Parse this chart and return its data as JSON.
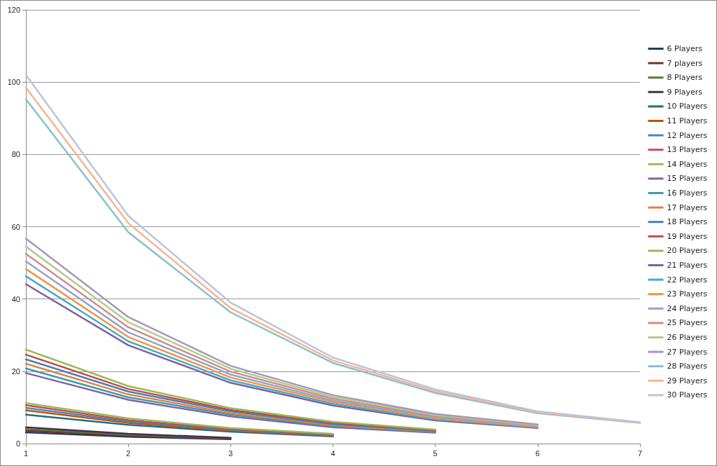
{
  "chart_data": {
    "type": "line",
    "categories": [
      "1",
      "2",
      "3",
      "4",
      "5",
      "6",
      "7"
    ],
    "ylim": [
      0,
      120
    ],
    "yticks": [
      0,
      20,
      40,
      60,
      80,
      100,
      120
    ],
    "grid": "y",
    "legend": "right",
    "marker": "none",
    "line_style": "solid",
    "series": [
      {
        "name": "6 Players",
        "color": "#1f3b64",
        "values": [
          3.1,
          1.9,
          1.2,
          null,
          null,
          null,
          null
        ]
      },
      {
        "name": "7 players",
        "color": "#772c2a",
        "values": [
          3.6,
          2.2,
          1.4,
          null,
          null,
          null,
          null
        ]
      },
      {
        "name": "8 Players",
        "color": "#5f7530",
        "values": [
          4.0,
          2.4,
          1.5,
          null,
          null,
          null,
          null
        ]
      },
      {
        "name": "9 Players",
        "color": "#3f3151",
        "values": [
          4.5,
          2.7,
          1.6,
          null,
          null,
          null,
          null
        ]
      },
      {
        "name": "10 Players",
        "color": "#276a7c",
        "values": [
          8.0,
          5.2,
          3.3,
          2.0,
          null,
          null,
          null
        ]
      },
      {
        "name": "11 Players",
        "color": "#b65708",
        "values": [
          9.2,
          5.7,
          3.6,
          2.2,
          null,
          null,
          null
        ]
      },
      {
        "name": "12 Players",
        "color": "#4f81bd",
        "values": [
          9.9,
          6.1,
          3.8,
          2.3,
          null,
          null,
          null
        ]
      },
      {
        "name": "13 Players",
        "color": "#c0504d",
        "values": [
          10.6,
          6.5,
          4.0,
          2.5,
          null,
          null,
          null
        ]
      },
      {
        "name": "14 Players",
        "color": "#9bbb59",
        "values": [
          11.2,
          7.0,
          4.3,
          2.7,
          null,
          null,
          null
        ]
      },
      {
        "name": "15 Players",
        "color": "#8064a2",
        "values": [
          19.5,
          12.1,
          7.5,
          4.5,
          3.0,
          null,
          null
        ]
      },
      {
        "name": "16 Players",
        "color": "#4198af",
        "values": [
          20.8,
          12.8,
          8.0,
          4.8,
          3.2,
          null,
          null
        ]
      },
      {
        "name": "17 Players",
        "color": "#db843d",
        "values": [
          22.1,
          13.6,
          8.4,
          5.1,
          3.4,
          null,
          null
        ]
      },
      {
        "name": "18 Players",
        "color": "#4a7ebb",
        "values": [
          23.3,
          14.4,
          8.9,
          5.4,
          3.5,
          null,
          null
        ]
      },
      {
        "name": "19 Players",
        "color": "#be4b48",
        "values": [
          24.6,
          15.1,
          9.3,
          5.7,
          3.7,
          null,
          null
        ]
      },
      {
        "name": "20 Players",
        "color": "#98b954",
        "values": [
          26.0,
          15.9,
          9.8,
          6.0,
          3.9,
          null,
          null
        ]
      },
      {
        "name": "21 Players",
        "color": "#7d60a0",
        "values": [
          44.1,
          27.2,
          16.8,
          10.5,
          6.4,
          4.3,
          null
        ]
      },
      {
        "name": "22 Players",
        "color": "#46aac5",
        "values": [
          46.3,
          28.3,
          17.5,
          11.0,
          6.7,
          4.5,
          null
        ]
      },
      {
        "name": "23 Players",
        "color": "#f69240",
        "values": [
          48.3,
          29.5,
          18.3,
          11.5,
          7.0,
          4.6,
          null
        ]
      },
      {
        "name": "24 Players",
        "color": "#8ea5cb",
        "values": [
          50.4,
          30.8,
          19.1,
          11.9,
          7.3,
          4.8,
          null
        ]
      },
      {
        "name": "25 Players",
        "color": "#cd8c8b",
        "values": [
          52.5,
          32.2,
          19.9,
          12.4,
          7.6,
          5.0,
          null
        ]
      },
      {
        "name": "26 Players",
        "color": "#b3cb8a",
        "values": [
          54.5,
          33.6,
          20.7,
          12.9,
          7.9,
          5.1,
          null
        ]
      },
      {
        "name": "27 Players",
        "color": "#a497bc",
        "values": [
          56.7,
          35.0,
          21.5,
          13.4,
          8.2,
          5.3,
          null
        ]
      },
      {
        "name": "28 Players",
        "color": "#87bfd1",
        "values": [
          95.3,
          58.5,
          36.3,
          22.3,
          14.0,
          8.4,
          5.7
        ]
      },
      {
        "name": "29 Players",
        "color": "#f8b48a",
        "values": [
          98.5,
          61.0,
          37.5,
          23.0,
          14.5,
          8.6,
          5.8
        ]
      },
      {
        "name": "30 Players",
        "color": "#b9c4de",
        "values": [
          102.0,
          63.0,
          39.0,
          23.8,
          15.0,
          8.9,
          5.9
        ]
      }
    ]
  }
}
